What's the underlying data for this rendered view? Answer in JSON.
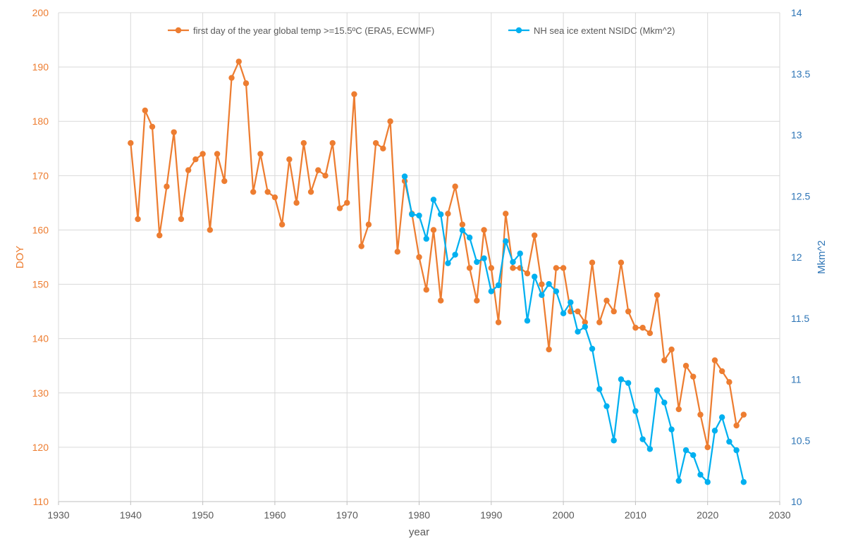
{
  "chart_data": {
    "type": "line",
    "title": "",
    "xlabel": "year",
    "ylabel_left": "DOY",
    "ylabel_right": "Mkm^2",
    "xlim": [
      1930,
      2030
    ],
    "ylim_left": [
      110,
      200
    ],
    "ylim_right": [
      10,
      14
    ],
    "x_ticks": [
      "1930",
      "1940",
      "1950",
      "1960",
      "1970",
      "1980",
      "1990",
      "2000",
      "2010",
      "2020",
      "2030"
    ],
    "y_left_ticks": [
      "110",
      "120",
      "130",
      "140",
      "150",
      "160",
      "170",
      "180",
      "190",
      "200"
    ],
    "y_right_ticks": [
      "10",
      "10.5",
      "11",
      "11.5",
      "12",
      "12.5",
      "13",
      "13.5",
      "14"
    ],
    "grid": true,
    "legend_position": "top",
    "colors": {
      "left_axis": "#ED7D31",
      "right_axis": "#2E75B6",
      "temp_series": "#ED7D31",
      "ice_series": "#00B0F0"
    },
    "series": [
      {
        "name": "first day of the year global temp >=15.5ºC (ERA5, ECWMF)",
        "axis": "left",
        "x": [
          1940,
          1941,
          1942,
          1943,
          1944,
          1945,
          1946,
          1947,
          1948,
          1949,
          1950,
          1951,
          1952,
          1953,
          1954,
          1955,
          1956,
          1957,
          1958,
          1959,
          1960,
          1961,
          1962,
          1963,
          1964,
          1965,
          1966,
          1967,
          1968,
          1969,
          1970,
          1971,
          1972,
          1973,
          1974,
          1975,
          1976,
          1977,
          1978,
          1979,
          1980,
          1981,
          1982,
          1983,
          1984,
          1985,
          1986,
          1987,
          1988,
          1989,
          1990,
          1991,
          1992,
          1993,
          1994,
          1995,
          1996,
          1997,
          1998,
          1999,
          2000,
          2001,
          2002,
          2003,
          2004,
          2005,
          2006,
          2007,
          2008,
          2009,
          2010,
          2011,
          2012,
          2013,
          2014,
          2015,
          2016,
          2017,
          2018,
          2019,
          2020,
          2021,
          2022,
          2023,
          2024,
          2025
        ],
        "values": [
          176,
          162,
          182,
          179,
          159,
          168,
          178,
          162,
          171,
          173,
          174,
          160,
          174,
          169,
          188,
          191,
          187,
          167,
          174,
          167,
          166,
          161,
          173,
          165,
          176,
          167,
          171,
          170,
          176,
          164,
          165,
          185,
          157,
          161,
          176,
          175,
          180,
          156,
          169,
          163,
          155,
          149,
          160,
          147,
          163,
          168,
          161,
          153,
          147,
          160,
          153,
          143,
          163,
          153,
          153,
          152,
          159,
          150,
          138,
          153,
          153,
          145,
          145,
          143,
          154,
          143,
          147,
          145,
          154,
          145,
          142,
          142,
          141,
          148,
          136,
          138,
          127,
          135,
          133,
          126,
          120,
          136,
          134,
          132,
          124,
          126
        ]
      },
      {
        "name": "NH sea ice extent NSIDC (Mkm^2)",
        "axis": "right",
        "x": [
          1978,
          1979,
          1980,
          1981,
          1982,
          1983,
          1984,
          1985,
          1986,
          1987,
          1988,
          1989,
          1990,
          1991,
          1992,
          1993,
          1994,
          1995,
          1996,
          1997,
          1998,
          1999,
          2000,
          2001,
          2002,
          2003,
          2004,
          2005,
          2006,
          2007,
          2008,
          2009,
          2010,
          2011,
          2012,
          2013,
          2014,
          2015,
          2016,
          2017,
          2018,
          2019,
          2020,
          2021,
          2022,
          2023,
          2024,
          2025
        ],
        "values": [
          12.66,
          12.35,
          12.34,
          12.15,
          12.47,
          12.35,
          11.95,
          12.02,
          12.22,
          12.16,
          11.96,
          11.99,
          11.72,
          11.77,
          12.13,
          11.96,
          12.03,
          11.48,
          11.84,
          11.69,
          11.78,
          11.72,
          11.54,
          11.63,
          11.39,
          11.43,
          11.25,
          10.92,
          10.78,
          10.5,
          11.0,
          10.97,
          10.74,
          10.51,
          10.43,
          10.91,
          10.81,
          10.59,
          10.17,
          10.42,
          10.38,
          10.22,
          10.16,
          10.58,
          10.69,
          10.49,
          10.42,
          10.16
        ]
      }
    ]
  }
}
